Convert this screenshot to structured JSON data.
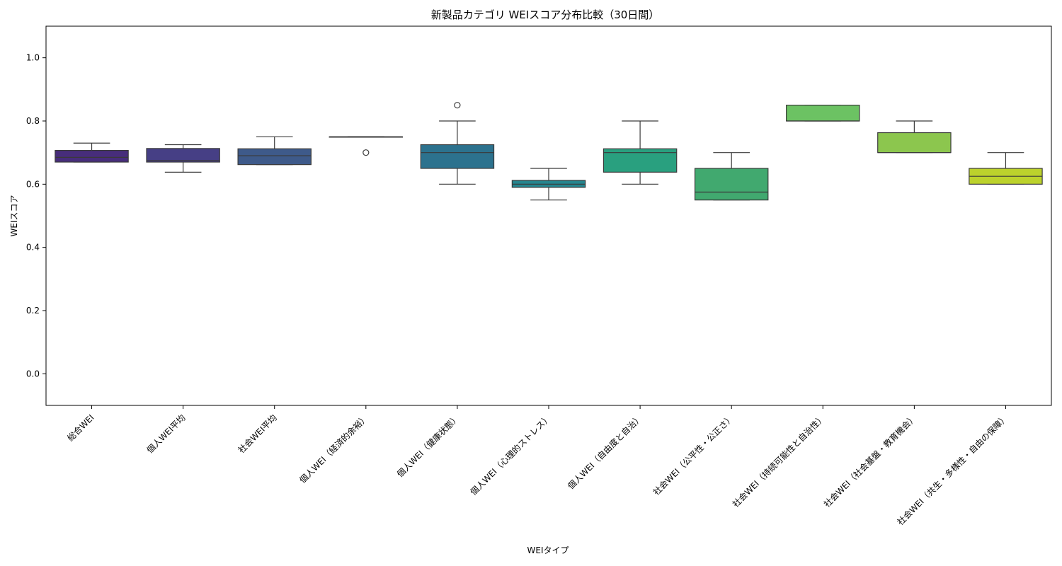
{
  "chart_data": {
    "type": "box",
    "title": "新製品カテゴリ WEIスコア分布比較（30日間）",
    "xlabel": "WEIタイプ",
    "ylabel": "WEIスコア",
    "ylim": [
      -0.1,
      1.1
    ],
    "yticks": [
      "0.0",
      "0.2",
      "0.4",
      "0.6",
      "0.8",
      "1.0"
    ],
    "grid": false,
    "categories": [
      "総合WEI",
      "個人WEI平均",
      "社会WEI平均",
      "個人WEI（経済的余裕）",
      "個人WEI（健康状態）",
      "個人WEI（心理的ストレス）",
      "個人WEI（自由度と自治）",
      "社会WEI（公平性・公正さ）",
      "社会WEI（持続可能性と自治性）",
      "社会WEI（社会基盤・教育機会）",
      "社会WEI（共生・多様性・自由の保障）"
    ],
    "boxes": [
      {
        "whisker_low": 0.67,
        "q1": 0.67,
        "median": 0.685,
        "q3": 0.707,
        "whisker_high": 0.73,
        "outliers": [],
        "color": "#472d7b"
      },
      {
        "whisker_low": 0.638,
        "q1": 0.67,
        "median": 0.675,
        "q3": 0.713,
        "whisker_high": 0.725,
        "outliers": [],
        "color": "#463f85"
      },
      {
        "whisker_low": 0.662,
        "q1": 0.662,
        "median": 0.69,
        "q3": 0.712,
        "whisker_high": 0.75,
        "outliers": [],
        "color": "#3e5a8a"
      },
      {
        "whisker_low": 0.75,
        "q1": 0.75,
        "median": 0.75,
        "q3": 0.75,
        "whisker_high": 0.75,
        "outliers": [
          0.7
        ],
        "color": "#38638d"
      },
      {
        "whisker_low": 0.6,
        "q1": 0.65,
        "median": 0.7,
        "q3": 0.725,
        "whisker_high": 0.8,
        "outliers": [
          0.85
        ],
        "color": "#2c728e"
      },
      {
        "whisker_low": 0.55,
        "q1": 0.59,
        "median": 0.6,
        "q3": 0.612,
        "whisker_high": 0.65,
        "outliers": [],
        "color": "#25858e"
      },
      {
        "whisker_low": 0.6,
        "q1": 0.638,
        "median": 0.7,
        "q3": 0.712,
        "whisker_high": 0.8,
        "outliers": [],
        "color": "#29a07f"
      },
      {
        "whisker_low": 0.55,
        "q1": 0.55,
        "median": 0.575,
        "q3": 0.65,
        "whisker_high": 0.7,
        "outliers": [],
        "color": "#41a96f"
      },
      {
        "whisker_low": 0.8,
        "q1": 0.8,
        "median": 0.8,
        "q3": 0.85,
        "whisker_high": 0.85,
        "outliers": [],
        "color": "#6cc263"
      },
      {
        "whisker_low": 0.7,
        "q1": 0.7,
        "median": 0.7,
        "q3": 0.763,
        "whisker_high": 0.8,
        "outliers": [],
        "color": "#8cc64e"
      },
      {
        "whisker_low": 0.6,
        "q1": 0.6,
        "median": 0.625,
        "q3": 0.65,
        "whisker_high": 0.7,
        "outliers": [],
        "color": "#bcd22c"
      }
    ]
  }
}
